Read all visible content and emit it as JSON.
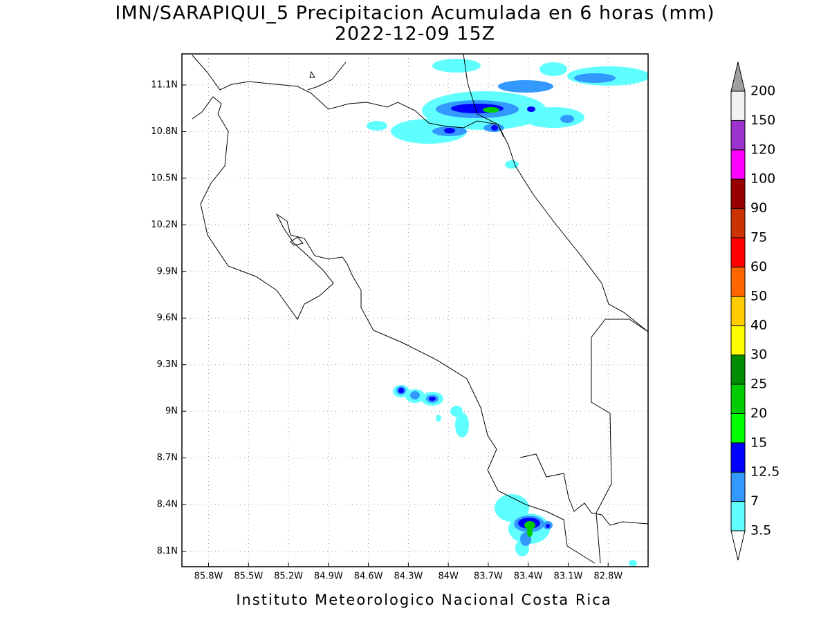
{
  "header": {
    "title": "IMN/SARAPIQUI_5 Precipitacion Acumulada en 6 horas (mm)",
    "subtitle": "2022-12-09 15Z"
  },
  "map": {
    "lonlim": [
      -86,
      -82.5
    ],
    "latlim": [
      8,
      11.3
    ],
    "lon_ticks": [
      {
        "value": -85.8,
        "label": "85.8W"
      },
      {
        "value": -85.5,
        "label": "85.5W"
      },
      {
        "value": -85.2,
        "label": "85.2W"
      },
      {
        "value": -84.9,
        "label": "84.9W"
      },
      {
        "value": -84.6,
        "label": "84.6W"
      },
      {
        "value": -84.3,
        "label": "84.3W"
      },
      {
        "value": -84,
        "label": "84W"
      },
      {
        "value": -83.7,
        "label": "83.7W"
      },
      {
        "value": -83.4,
        "label": "83.4W"
      },
      {
        "value": -83.1,
        "label": "83.1W"
      },
      {
        "value": -82.8,
        "label": "82.8W"
      }
    ],
    "lat_ticks": [
      {
        "value": 11.1,
        "label": "11.1N"
      },
      {
        "value": 10.8,
        "label": "10.8N"
      },
      {
        "value": 10.5,
        "label": "10.5N"
      },
      {
        "value": 10.2,
        "label": "10.2N"
      },
      {
        "value": 9.9,
        "label": "9.9N"
      },
      {
        "value": 9.6,
        "label": "9.6N"
      },
      {
        "value": 9.3,
        "label": "9.3N"
      },
      {
        "value": 9,
        "label": "9N"
      },
      {
        "value": 8.7,
        "label": "8.7N"
      },
      {
        "value": 8.4,
        "label": "8.4N"
      },
      {
        "value": 8.1,
        "label": "8.1N"
      }
    ],
    "grid": true
  },
  "colorbar": {
    "levels": [
      3.5,
      7,
      12.5,
      15,
      20,
      25,
      30,
      40,
      50,
      60,
      75,
      90,
      100,
      120,
      150,
      200
    ],
    "colors": [
      "#60ffff",
      "#3399ff",
      "#0000ff",
      "#00ff00",
      "#00cc00",
      "#008c00",
      "#ffff00",
      "#ffcc00",
      "#ff6600",
      "#ff0000",
      "#cc3300",
      "#990000",
      "#ff00ff",
      "#9933cc",
      "#f2f2f2"
    ],
    "over_color": "#a0a0a0",
    "under_color": "#ffffff"
  },
  "footer": "Instituto Meteorologico Nacional Costa Rica"
}
